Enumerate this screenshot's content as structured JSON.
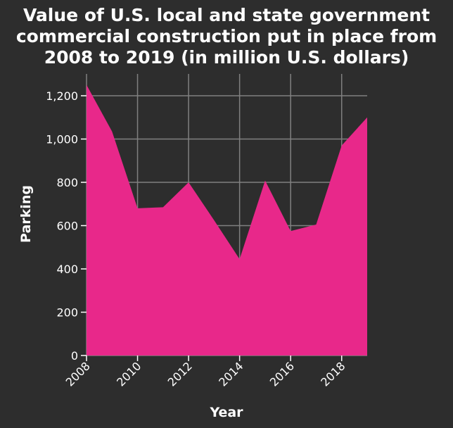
{
  "chart_data": {
    "type": "area",
    "title_lines": [
      "Value of U.S. local and state government",
      "commercial construction put in place from",
      "2008 to 2019 (in million U.S. dollars)"
    ],
    "xlabel": "Year",
    "ylabel": "Parking",
    "x": [
      2008,
      2009,
      2010,
      2011,
      2012,
      2013,
      2014,
      2015,
      2016,
      2017,
      2018,
      2019
    ],
    "values": [
      1250,
      1035,
      680,
      685,
      800,
      625,
      445,
      808,
      575,
      605,
      970,
      1100
    ],
    "xlim": [
      2008,
      2019
    ],
    "ylim": [
      0,
      1300
    ],
    "xticks": [
      2008,
      2010,
      2012,
      2014,
      2016,
      2018
    ],
    "xtick_labels": [
      "2008",
      "2010",
      "2012",
      "2014",
      "2016",
      "2018"
    ],
    "yticks": [
      0,
      200,
      400,
      600,
      800,
      1000,
      1200
    ],
    "ytick_labels": [
      "0",
      "200",
      "400",
      "600",
      "800",
      "1,000",
      "1,200"
    ],
    "grid": true,
    "fill_color": "#e8288a",
    "background_color": "#2d2d2d",
    "grid_color": "#808080"
  }
}
